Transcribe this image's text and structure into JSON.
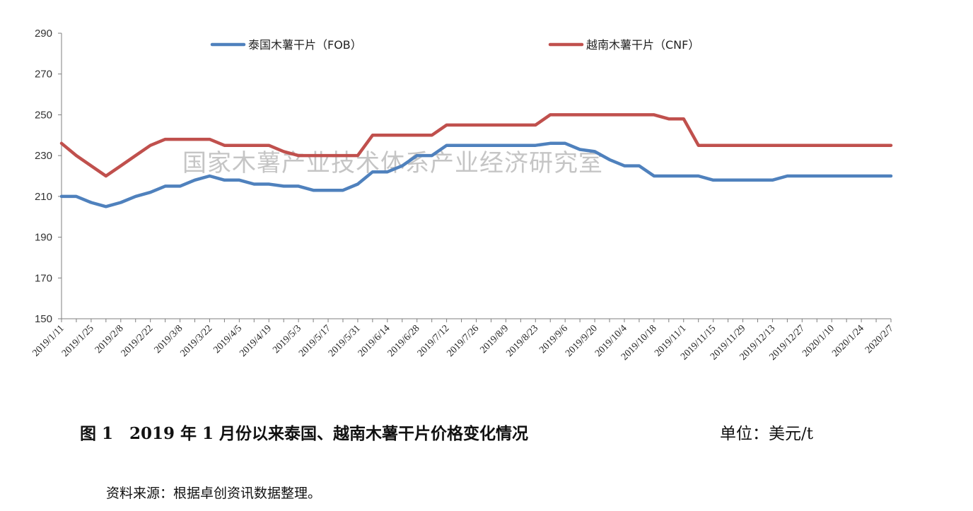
{
  "chart_data": {
    "type": "line",
    "watermark": "国家木薯产业技术体系产业经济研究室",
    "ylim": [
      150,
      290
    ],
    "yticks": [
      150,
      170,
      190,
      210,
      230,
      250,
      270,
      290
    ],
    "categories": [
      "2019/1/11",
      "2019/1/18",
      "2019/1/25",
      "2019/2/1",
      "2019/2/8",
      "2019/2/15",
      "2019/2/22",
      "2019/3/1",
      "2019/3/8",
      "2019/3/15",
      "2019/3/22",
      "2019/3/29",
      "2019/4/5",
      "2019/4/12",
      "2019/4/19",
      "2019/4/26",
      "2019/5/3",
      "2019/5/10",
      "2019/5/17",
      "2019/5/24",
      "2019/5/31",
      "2019/6/7",
      "2019/6/14",
      "2019/6/21",
      "2019/6/28",
      "2019/7/5",
      "2019/7/12",
      "2019/7/19",
      "2019/7/26",
      "2019/8/2",
      "2019/8/9",
      "2019/8/16",
      "2019/8/23",
      "2019/8/30",
      "2019/9/6",
      "2019/9/13",
      "2019/9/20",
      "2019/9/27",
      "2019/10/4",
      "2019/10/11",
      "2019/10/18",
      "2019/10/25",
      "2019/11/1",
      "2019/11/8",
      "2019/11/15",
      "2019/11/22",
      "2019/11/29",
      "2019/12/6",
      "2019/12/13",
      "2019/12/20",
      "2019/12/27",
      "2020/1/3",
      "2020/1/10",
      "2020/1/17",
      "2020/1/24",
      "2020/1/31",
      "2020/2/7"
    ],
    "tick_labels": [
      "2019/1/11",
      "2019/1/25",
      "2019/2/8",
      "2019/2/22",
      "2019/3/8",
      "2019/3/22",
      "2019/4/5",
      "2019/4/19",
      "2019/5/3",
      "2019/5/17",
      "2019/5/31",
      "2019/6/14",
      "2019/6/28",
      "2019/7/12",
      "2019/7/26",
      "2019/8/9",
      "2019/8/23",
      "2019/9/6",
      "2019/9/20",
      "2019/10/4",
      "2019/10/18",
      "2019/11/1",
      "2019/11/15",
      "2019/11/29",
      "2019/12/13",
      "2019/12/27",
      "2020/1/10",
      "2020/1/24",
      "2020/2/7"
    ],
    "legend_position": "top",
    "series": [
      {
        "name": "泰国木薯干片（FOB）",
        "color": "#4f81bd",
        "values": [
          210,
          210,
          207,
          205,
          207,
          210,
          212,
          215,
          215,
          218,
          220,
          218,
          218,
          216,
          216,
          215,
          215,
          213,
          213,
          213,
          216,
          222,
          222,
          225,
          230,
          230,
          235,
          235,
          235,
          235,
          235,
          235,
          235,
          236,
          236,
          233,
          232,
          228,
          225,
          225,
          220,
          220,
          220,
          220,
          218,
          218,
          218,
          218,
          218,
          220,
          220,
          220,
          220,
          220,
          220,
          220,
          220
        ]
      },
      {
        "name": "越南木薯干片（CNF）",
        "color": "#c0504d",
        "values": [
          236,
          230,
          225,
          220,
          225,
          230,
          235,
          238,
          238,
          238,
          238,
          235,
          235,
          235,
          235,
          232,
          230,
          230,
          230,
          230,
          230,
          240,
          240,
          240,
          240,
          240,
          245,
          245,
          245,
          245,
          245,
          245,
          245,
          250,
          250,
          250,
          250,
          250,
          250,
          250,
          250,
          248,
          248,
          235,
          235,
          235,
          235,
          235,
          235,
          235,
          235,
          235,
          235,
          235,
          235,
          235,
          235
        ]
      }
    ]
  },
  "caption": {
    "figure": "图 1　2019 年 1 月份以来泰国、越南木薯干片价格变化情况",
    "unit": "单位：美元/t"
  },
  "source": "资料来源：根据卓创资讯数据整理。"
}
